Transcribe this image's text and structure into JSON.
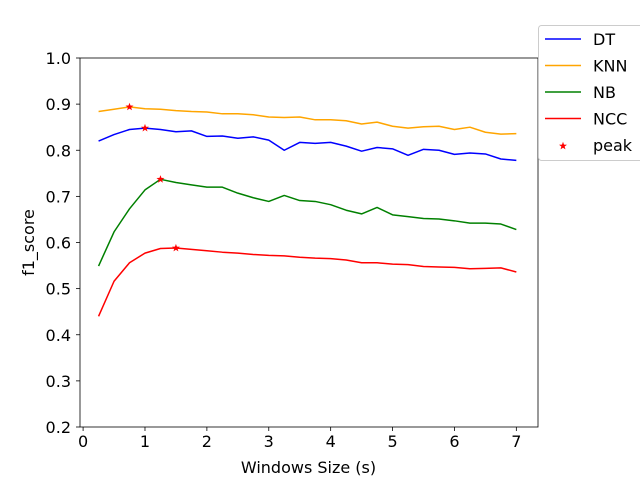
{
  "chart_data": {
    "type": "line",
    "xlabel": "Windows Size (s)",
    "ylabel": "f1_score",
    "xlim": [
      -0.05,
      7.35
    ],
    "ylim": [
      0.2,
      1.0
    ],
    "xticks": [
      0,
      1,
      2,
      3,
      4,
      5,
      6,
      7
    ],
    "yticks": [
      0.2,
      0.3,
      0.4,
      0.5,
      0.6,
      0.7,
      0.8,
      0.9,
      1.0
    ],
    "grid": false,
    "legend_position": "outside top-right",
    "x": [
      0.25,
      0.5,
      0.75,
      1.0,
      1.25,
      1.5,
      1.75,
      2.0,
      2.25,
      2.5,
      2.75,
      3.0,
      3.25,
      3.5,
      3.75,
      4.0,
      4.25,
      4.5,
      4.75,
      5.0,
      5.25,
      5.5,
      5.75,
      6.0,
      6.25,
      6.5,
      6.75,
      7.0
    ],
    "series": [
      {
        "name": "DT",
        "color": "#0000ff",
        "values": [
          0.82,
          0.834,
          0.845,
          0.848,
          0.845,
          0.84,
          0.842,
          0.83,
          0.831,
          0.826,
          0.829,
          0.822,
          0.8,
          0.817,
          0.815,
          0.817,
          0.809,
          0.798,
          0.806,
          0.803,
          0.789,
          0.802,
          0.8,
          0.791,
          0.794,
          0.792,
          0.781,
          0.778
        ]
      },
      {
        "name": "KNN",
        "color": "#ffa500",
        "values": [
          0.884,
          0.889,
          0.894,
          0.89,
          0.889,
          0.886,
          0.884,
          0.883,
          0.879,
          0.879,
          0.877,
          0.872,
          0.871,
          0.872,
          0.866,
          0.866,
          0.864,
          0.857,
          0.861,
          0.852,
          0.848,
          0.851,
          0.852,
          0.845,
          0.85,
          0.839,
          0.835,
          0.836
        ]
      },
      {
        "name": "NB",
        "color": "#008000",
        "values": [
          0.549,
          0.623,
          0.673,
          0.714,
          0.737,
          0.73,
          0.725,
          0.72,
          0.72,
          0.707,
          0.697,
          0.689,
          0.702,
          0.691,
          0.689,
          0.682,
          0.67,
          0.662,
          0.676,
          0.66,
          0.656,
          0.652,
          0.651,
          0.647,
          0.642,
          0.642,
          0.64,
          0.628
        ]
      },
      {
        "name": "NCC",
        "color": "#ff0000",
        "values": [
          0.44,
          0.516,
          0.556,
          0.577,
          0.587,
          0.588,
          0.585,
          0.582,
          0.579,
          0.577,
          0.574,
          0.572,
          0.571,
          0.568,
          0.566,
          0.565,
          0.562,
          0.556,
          0.556,
          0.553,
          0.552,
          0.548,
          0.547,
          0.546,
          0.543,
          0.544,
          0.545,
          0.536
        ]
      }
    ],
    "peak": {
      "name": "peak",
      "color": "#ff0000",
      "points": [
        {
          "x": 0.75,
          "y": 0.894
        },
        {
          "x": 1.0,
          "y": 0.848
        },
        {
          "x": 1.25,
          "y": 0.737
        },
        {
          "x": 1.5,
          "y": 0.588
        }
      ]
    }
  }
}
